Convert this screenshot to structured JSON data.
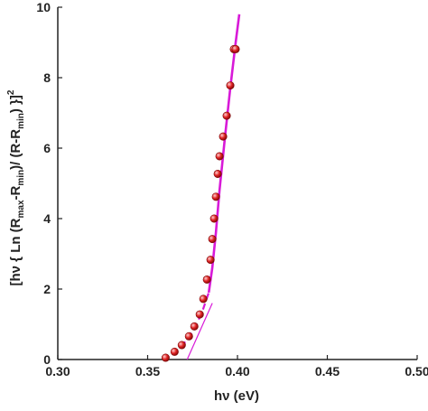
{
  "chart_data": {
    "type": "scatter",
    "title": "",
    "xlabel": "hν (eV)",
    "ylabel_parts": {
      "p1": "[hν { Ln (R",
      "sub1": "max",
      "p2": "-R",
      "sub2": "min",
      "p3": ")/ (R-R",
      "sub3": "min",
      "p4": ") }]",
      "sup": "2"
    },
    "xlim": [
      0.3,
      0.5
    ],
    "ylim": [
      0,
      10
    ],
    "x_ticks": [
      {
        "value": 0.3,
        "label": "0.30"
      },
      {
        "value": 0.35,
        "label": "0.35"
      },
      {
        "value": 0.4,
        "label": "0.40"
      },
      {
        "value": 0.45,
        "label": "0.45"
      },
      {
        "value": 0.5,
        "label": "0.50"
      }
    ],
    "y_ticks": [
      {
        "value": 0,
        "label": "0"
      },
      {
        "value": 2,
        "label": "2"
      },
      {
        "value": 4,
        "label": "4"
      },
      {
        "value": 6,
        "label": "6"
      },
      {
        "value": 8,
        "label": "8"
      },
      {
        "value": 10,
        "label": "10"
      }
    ],
    "grid": false,
    "legend": "none",
    "series": [
      {
        "kind": "points",
        "color": "#d42020",
        "x": [
          0.36,
          0.365,
          0.369,
          0.373,
          0.376,
          0.379,
          0.381,
          0.383,
          0.385,
          0.386,
          0.387,
          0.388,
          0.389,
          0.39,
          0.392,
          0.394,
          0.396,
          0.398,
          0.399
        ],
        "y": [
          0.05,
          0.22,
          0.41,
          0.66,
          0.94,
          1.28,
          1.72,
          2.27,
          2.83,
          3.42,
          4.0,
          4.62,
          5.27,
          5.77,
          6.33,
          6.92,
          7.78,
          8.81,
          8.81
        ]
      },
      {
        "kind": "fit-curve",
        "color": "#d81ad8",
        "dashed_below_y": 2.1,
        "x": [
          0.359,
          0.365,
          0.37,
          0.375,
          0.38,
          0.384,
          0.386,
          0.388,
          0.39,
          0.393,
          0.396,
          0.399,
          0.401
        ],
        "y": [
          0.0,
          0.2,
          0.44,
          0.8,
          1.3,
          1.9,
          2.6,
          3.6,
          4.8,
          6.3,
          7.7,
          9.0,
          9.8
        ]
      },
      {
        "kind": "tangent-line",
        "color": "#d81ad8",
        "x": [
          0.372,
          0.386
        ],
        "y": [
          0.0,
          1.6
        ]
      }
    ]
  }
}
